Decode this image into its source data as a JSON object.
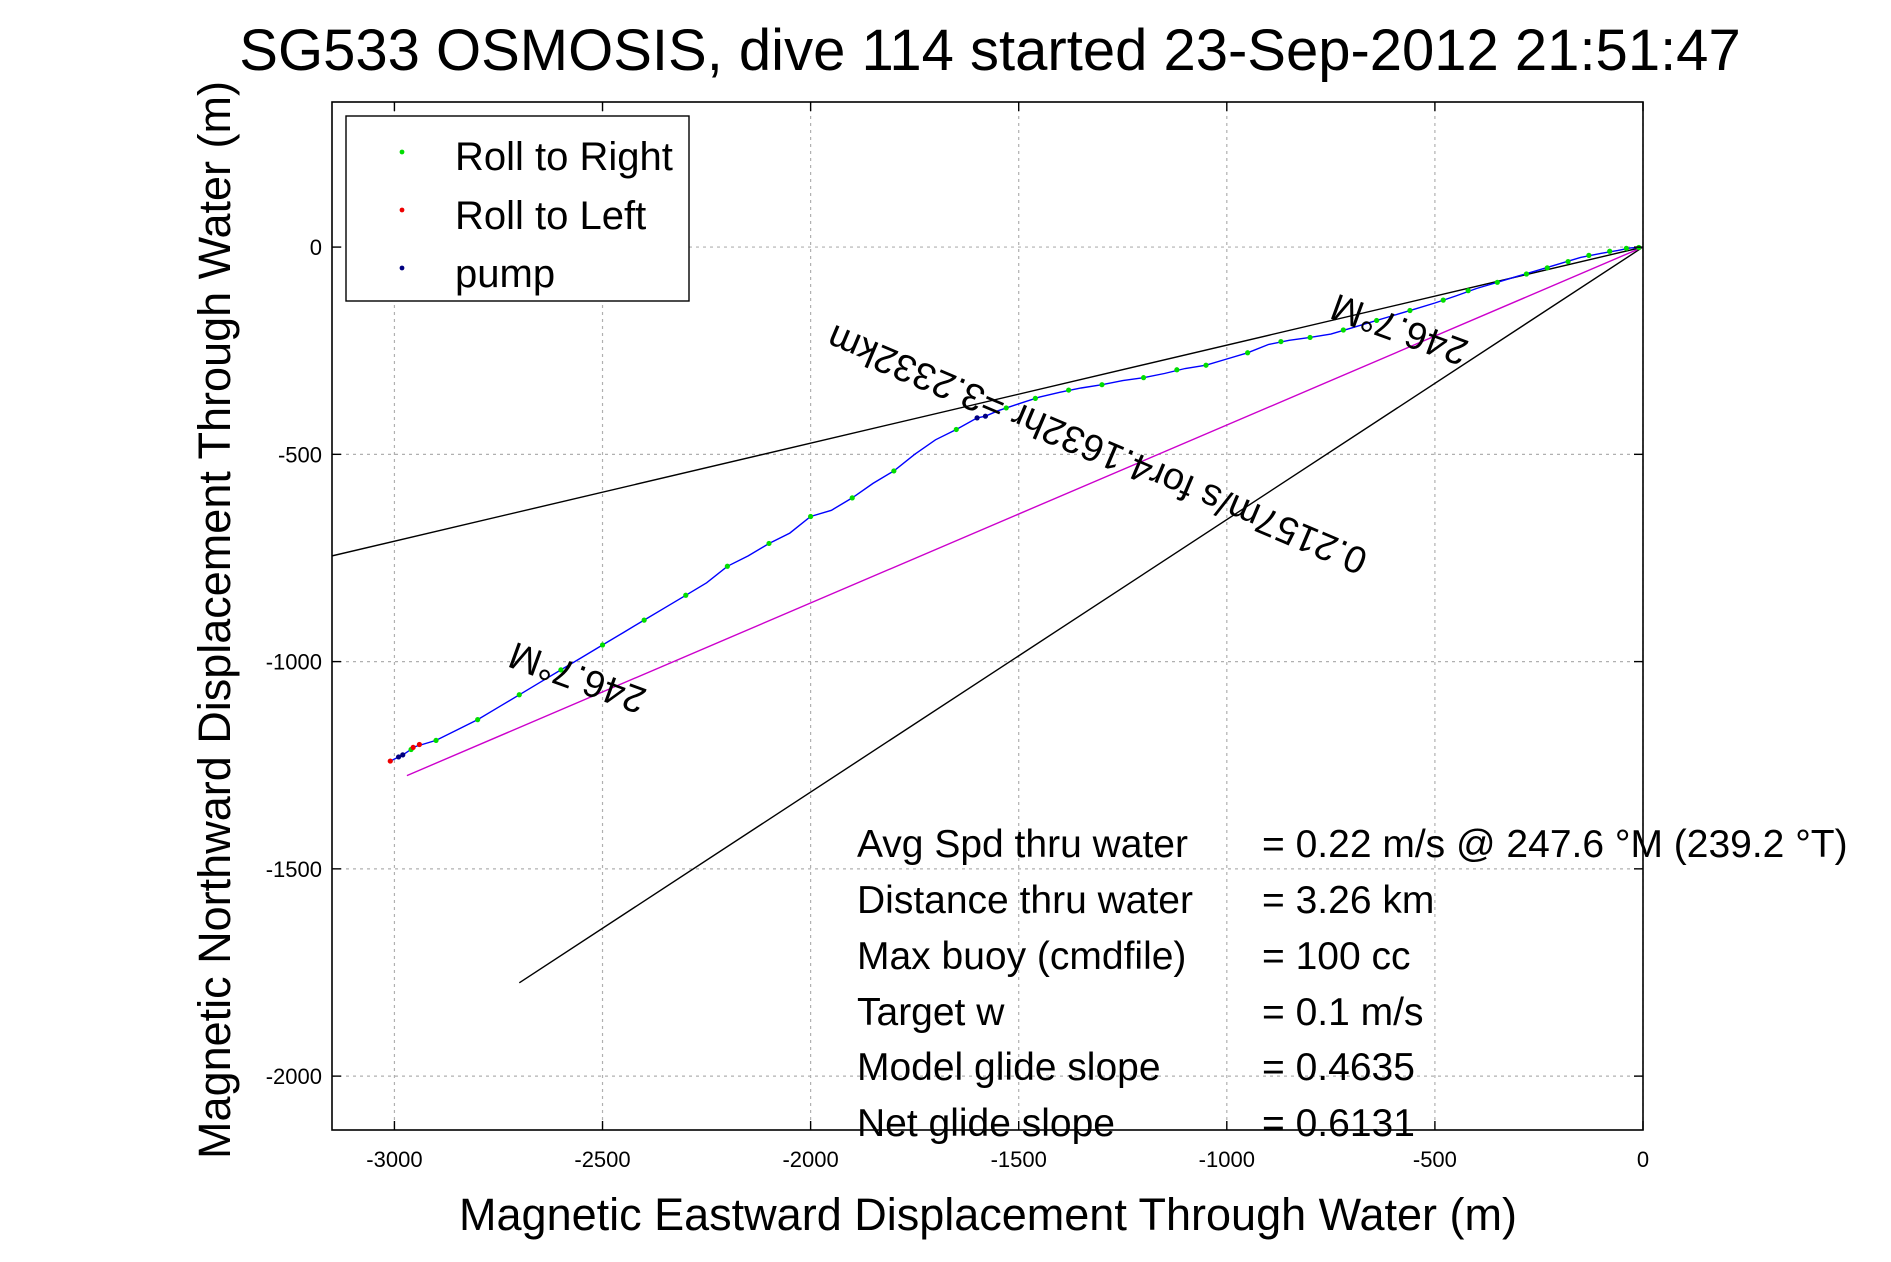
{
  "chart_data": {
    "type": "scatter",
    "title": "SG533 OSMOSIS, dive 114 started 23-Sep-2012 21:51:47",
    "xlabel": "Magnetic Eastward Displacement Through Water (m)",
    "ylabel": "Magnetic Northward Displacement Through Water (m)",
    "xlim": [
      -3150,
      0
    ],
    "ylim": [
      -2130,
      350
    ],
    "xticks": [
      -3000,
      -2500,
      -2000,
      -1500,
      -1000,
      -500,
      0
    ],
    "yticks": [
      0,
      -500,
      -1000,
      -1500,
      -2000
    ],
    "grid": true,
    "legend_position": "top-left",
    "legend": [
      {
        "label": "Roll to Right",
        "color": "#00dd00"
      },
      {
        "label": "Roll to Left",
        "color": "#ee0000"
      },
      {
        "label": "pump",
        "color": "#000080"
      }
    ],
    "track": {
      "color": "#0000ff",
      "points": [
        [
          0,
          0
        ],
        [
          -30,
          -2
        ],
        [
          -60,
          -8
        ],
        [
          -100,
          -15
        ],
        [
          -150,
          -25
        ],
        [
          -200,
          -40
        ],
        [
          -250,
          -55
        ],
        [
          -300,
          -70
        ],
        [
          -350,
          -85
        ],
        [
          -400,
          -100
        ],
        [
          -450,
          -118
        ],
        [
          -500,
          -135
        ],
        [
          -550,
          -150
        ],
        [
          -600,
          -165
        ],
        [
          -650,
          -180
        ],
        [
          -700,
          -195
        ],
        [
          -750,
          -210
        ],
        [
          -800,
          -218
        ],
        [
          -850,
          -225
        ],
        [
          -900,
          -235
        ],
        [
          -950,
          -255
        ],
        [
          -1000,
          -270
        ],
        [
          -1050,
          -285
        ],
        [
          -1100,
          -293
        ],
        [
          -1150,
          -305
        ],
        [
          -1200,
          -315
        ],
        [
          -1250,
          -322
        ],
        [
          -1300,
          -332
        ],
        [
          -1350,
          -340
        ],
        [
          -1400,
          -350
        ],
        [
          -1450,
          -362
        ],
        [
          -1500,
          -378
        ],
        [
          -1550,
          -395
        ],
        [
          -1580,
          -408
        ],
        [
          -1600,
          -412
        ],
        [
          -1650,
          -440
        ],
        [
          -1700,
          -465
        ],
        [
          -1750,
          -500
        ],
        [
          -1800,
          -540
        ],
        [
          -1850,
          -570
        ],
        [
          -1900,
          -605
        ],
        [
          -1950,
          -635
        ],
        [
          -2000,
          -650
        ],
        [
          -2050,
          -690
        ],
        [
          -2100,
          -715
        ],
        [
          -2150,
          -745
        ],
        [
          -2200,
          -770
        ],
        [
          -2250,
          -810
        ],
        [
          -2300,
          -840
        ],
        [
          -2350,
          -870
        ],
        [
          -2400,
          -900
        ],
        [
          -2450,
          -930
        ],
        [
          -2500,
          -960
        ],
        [
          -2550,
          -990
        ],
        [
          -2600,
          -1020
        ],
        [
          -2650,
          -1050
        ],
        [
          -2700,
          -1080
        ],
        [
          -2750,
          -1110
        ],
        [
          -2800,
          -1140
        ],
        [
          -2850,
          -1165
        ],
        [
          -2900,
          -1190
        ],
        [
          -2950,
          -1205
        ],
        [
          -2980,
          -1225
        ],
        [
          -3010,
          -1240
        ]
      ]
    },
    "roll_right": [
      [
        -10,
        -1
      ],
      [
        -40,
        -3
      ],
      [
        -80,
        -10
      ],
      [
        -130,
        -20
      ],
      [
        -180,
        -35
      ],
      [
        -230,
        -50
      ],
      [
        -280,
        -65
      ],
      [
        -350,
        -85
      ],
      [
        -420,
        -105
      ],
      [
        -480,
        -128
      ],
      [
        -560,
        -153
      ],
      [
        -640,
        -177
      ],
      [
        -720,
        -200
      ],
      [
        -800,
        -218
      ],
      [
        -870,
        -228
      ],
      [
        -950,
        -255
      ],
      [
        -1050,
        -285
      ],
      [
        -1120,
        -296
      ],
      [
        -1200,
        -315
      ],
      [
        -1300,
        -332
      ],
      [
        -1380,
        -345
      ],
      [
        -1460,
        -365
      ],
      [
        -1530,
        -388
      ],
      [
        -1650,
        -440
      ],
      [
        -1800,
        -540
      ],
      [
        -1900,
        -605
      ],
      [
        -2000,
        -650
      ],
      [
        -2100,
        -715
      ],
      [
        -2200,
        -770
      ],
      [
        -2300,
        -840
      ],
      [
        -2400,
        -900
      ],
      [
        -2500,
        -960
      ],
      [
        -2600,
        -1020
      ],
      [
        -2700,
        -1080
      ],
      [
        -2800,
        -1140
      ],
      [
        -2900,
        -1190
      ],
      [
        -2960,
        -1212
      ]
    ],
    "roll_left": [
      [
        -2940,
        -1200
      ],
      [
        -2955,
        -1207
      ],
      [
        -3010,
        -1240
      ]
    ],
    "pump": [
      [
        -1580,
        -408
      ],
      [
        -1600,
        -412
      ],
      [
        -2980,
        -1225
      ],
      [
        -2990,
        -1230
      ]
    ],
    "lines": [
      {
        "color": "#000000",
        "points": [
          [
            0,
            0
          ],
          [
            -3150,
            -745
          ]
        ]
      },
      {
        "color": "#000000",
        "points": [
          [
            0,
            0
          ],
          [
            -2700,
            -1775
          ]
        ]
      },
      {
        "color": "#cc00cc",
        "points": [
          [
            0,
            0
          ],
          [
            -2970,
            -1275
          ]
        ]
      }
    ],
    "annotations": [
      {
        "text": "246.7°M",
        "x": -2550,
        "y": -1010,
        "rotate": 200
      },
      {
        "text": "246.7°M",
        "x": -575,
        "y": -170,
        "rotate": 200
      },
      {
        "text": "0.2157m/s for4.1632hr =3.2332km",
        "x": -1300,
        "y": -460,
        "rotate": 203
      }
    ]
  },
  "stats": [
    {
      "label": "Avg Spd thru water",
      "value": "=  0.22 m/s @ 247.6 °M (239.2 °T)"
    },
    {
      "label": "Distance thru water",
      "value": "=  3.26 km"
    },
    {
      "label": "Max buoy (cmdfile)",
      "value": "= 100 cc"
    },
    {
      "label": "Target w",
      "value": "= 0.1 m/s"
    },
    {
      "label": "Model glide slope",
      "value": "= 0.4635"
    },
    {
      "label": "Net glide slope",
      "value": "= 0.6131"
    }
  ]
}
